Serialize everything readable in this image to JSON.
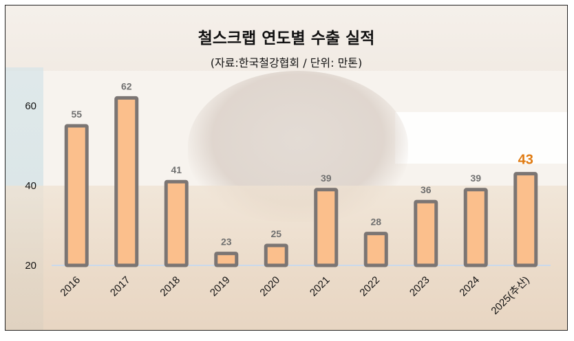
{
  "title": "철스크랩 연도별 수출 실적",
  "subtitle": "(자료:한국철강협회 / 단위: 만톤)",
  "chart_data": {
    "type": "bar",
    "categories": [
      "2016",
      "2017",
      "2018",
      "2019",
      "2020",
      "2021",
      "2022",
      "2023",
      "2024",
      "2025(추산)"
    ],
    "values": [
      55,
      62,
      41,
      23,
      25,
      39,
      28,
      36,
      39,
      43
    ],
    "data_labels": [
      "55",
      "62",
      "41",
      "23",
      "25",
      "39",
      "28",
      "36",
      "39",
      "43"
    ],
    "highlight_index": 9,
    "ylim": [
      20,
      65
    ],
    "yticks": [
      "20",
      "40",
      "60"
    ],
    "ytick_values": [
      20,
      40,
      60
    ],
    "grid": false,
    "legend": "none",
    "colors": {
      "bar_fill": "#fbbf8c",
      "bar_border": "#7b7573",
      "highlight_label": "#e07a10",
      "data_label": "#6f6f6f",
      "baseline": "#c9d9ec"
    }
  }
}
